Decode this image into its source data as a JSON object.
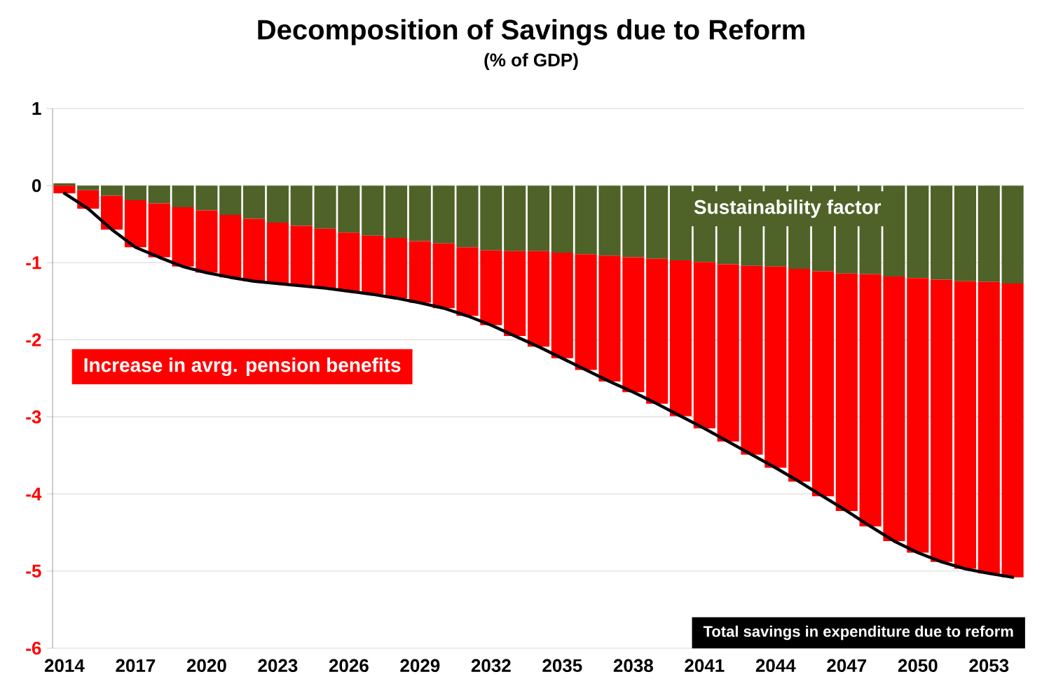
{
  "chart_data": {
    "type": "bar",
    "title": "Decomposition of Savings due to Reform",
    "subtitle": "(% of GDP)",
    "categories": [
      "2014",
      null,
      null,
      "2017",
      null,
      null,
      "2020",
      null,
      null,
      "2023",
      null,
      null,
      "2026",
      null,
      null,
      "2029",
      null,
      null,
      "2032",
      null,
      null,
      "2035",
      null,
      null,
      "2038",
      null,
      null,
      "2041",
      null,
      null,
      "2044",
      null,
      null,
      "2047",
      null,
      null,
      "2050",
      null,
      null,
      "2053",
      null
    ],
    "stacked": true,
    "grid": "y",
    "ylim": [
      -6,
      1
    ],
    "yticks": [
      -6,
      -5,
      -4,
      -3,
      -2,
      -1,
      0,
      1
    ],
    "series": [
      {
        "name": "Sustainability factor",
        "color": "#4f6228",
        "values": [
          0.03,
          -0.06,
          -0.13,
          -0.19,
          -0.23,
          -0.28,
          -0.32,
          -0.38,
          -0.43,
          -0.48,
          -0.52,
          -0.56,
          -0.61,
          -0.65,
          -0.68,
          -0.72,
          -0.75,
          -0.8,
          -0.84,
          -0.85,
          -0.85,
          -0.87,
          -0.89,
          -0.91,
          -0.93,
          -0.95,
          -0.97,
          -0.99,
          -1.02,
          -1.04,
          -1.05,
          -1.08,
          -1.11,
          -1.14,
          -1.15,
          -1.18,
          -1.2,
          -1.22,
          -1.24,
          -1.25,
          -1.27
        ]
      },
      {
        "name": "Increase in avrg. pension benefits",
        "color": "#ff0000",
        "values": [
          -0.1,
          -0.24,
          -0.44,
          -0.61,
          -0.7,
          -0.77,
          -0.81,
          -0.81,
          -0.81,
          -0.79,
          -0.78,
          -0.77,
          -0.76,
          -0.76,
          -0.78,
          -0.8,
          -0.84,
          -0.89,
          -0.97,
          -1.1,
          -1.24,
          -1.37,
          -1.5,
          -1.63,
          -1.75,
          -1.88,
          -2.02,
          -2.16,
          -2.3,
          -2.45,
          -2.61,
          -2.76,
          -2.92,
          -3.08,
          -3.27,
          -3.43,
          -3.56,
          -3.66,
          -3.73,
          -3.78,
          -3.81
        ]
      },
      {
        "name": "Total savings in expenditure due to reform",
        "type": "line",
        "color": "#000000",
        "values": [
          -0.1,
          -0.3,
          -0.57,
          -0.8,
          -0.93,
          -1.05,
          -1.13,
          -1.19,
          -1.24,
          -1.27,
          -1.3,
          -1.33,
          -1.37,
          -1.41,
          -1.46,
          -1.52,
          -1.59,
          -1.69,
          -1.81,
          -1.95,
          -2.09,
          -2.24,
          -2.39,
          -2.54,
          -2.68,
          -2.83,
          -2.99,
          -3.15,
          -3.32,
          -3.49,
          -3.66,
          -3.84,
          -4.03,
          -4.22,
          -4.42,
          -4.61,
          -4.76,
          -4.88,
          -4.97,
          -5.03,
          -5.08
        ]
      }
    ]
  }
}
